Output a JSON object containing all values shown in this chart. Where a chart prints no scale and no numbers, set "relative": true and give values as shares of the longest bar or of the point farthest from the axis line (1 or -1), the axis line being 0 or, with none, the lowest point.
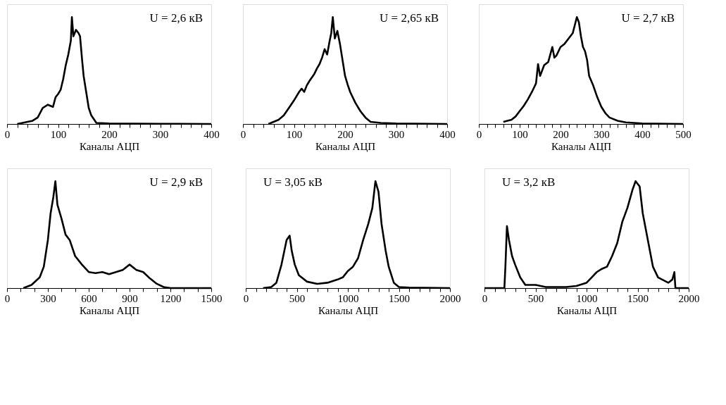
{
  "chart_data": [
    {
      "type": "line",
      "relative": true,
      "xlabel": "Каналы АЦП",
      "annotations": [
        "U = 2,6 кВ"
      ],
      "tick_labels": "x",
      "xlim": [
        0,
        400
      ],
      "xticks": [
        0,
        {
          "value": 20,
          "label": null
        },
        {
          "value": 40,
          "label": null
        },
        {
          "value": 60,
          "label": null
        },
        {
          "value": 80,
          "label": null
        },
        100,
        {
          "value": 120,
          "label": null
        },
        {
          "value": 140,
          "label": null
        },
        {
          "value": 160,
          "label": null
        },
        {
          "value": 180,
          "label": null
        },
        200,
        {
          "value": 220,
          "label": null
        },
        {
          "value": 240,
          "label": null
        },
        {
          "value": 260,
          "label": null
        },
        {
          "value": 280,
          "label": null
        },
        300,
        {
          "value": 320,
          "label": null
        },
        {
          "value": 340,
          "label": null
        },
        {
          "value": 360,
          "label": null
        },
        {
          "value": 380,
          "label": null
        },
        400
      ],
      "x": [
        20,
        40,
        50,
        60,
        70,
        80,
        90,
        95,
        100,
        105,
        110,
        115,
        120,
        125,
        127,
        130,
        135,
        140,
        143,
        147,
        150,
        155,
        160,
        165,
        175,
        200,
        250,
        300,
        400
      ],
      "series": [
        {
          "color": "#000000",
          "values": [
            0,
            0.02,
            0.03,
            0.06,
            0.15,
            0.18,
            0.16,
            0.25,
            0.28,
            0.32,
            0.42,
            0.55,
            0.65,
            0.78,
            1.0,
            0.82,
            0.88,
            0.85,
            0.82,
            0.6,
            0.45,
            0.3,
            0.15,
            0.08,
            0.01,
            0.005,
            0.003,
            0.002,
            0
          ]
        }
      ]
    },
    {
      "type": "line",
      "relative": true,
      "xlabel": "Каналы АЦП",
      "annotations": [
        "U = 2,65 кВ"
      ],
      "tick_labels": "x",
      "xlim": [
        0,
        400
      ],
      "xticks": [
        0,
        {
          "value": 20,
          "label": null
        },
        {
          "value": 40,
          "label": null
        },
        {
          "value": 60,
          "label": null
        },
        {
          "value": 80,
          "label": null
        },
        100,
        {
          "value": 120,
          "label": null
        },
        {
          "value": 140,
          "label": null
        },
        {
          "value": 160,
          "label": null
        },
        {
          "value": 180,
          "label": null
        },
        200,
        {
          "value": 220,
          "label": null
        },
        {
          "value": 240,
          "label": null
        },
        {
          "value": 260,
          "label": null
        },
        {
          "value": 280,
          "label": null
        },
        300,
        {
          "value": 320,
          "label": null
        },
        {
          "value": 340,
          "label": null
        },
        {
          "value": 360,
          "label": null
        },
        {
          "value": 380,
          "label": null
        },
        400
      ],
      "x": [
        50,
        60,
        70,
        80,
        90,
        100,
        110,
        115,
        120,
        125,
        130,
        140,
        145,
        150,
        155,
        160,
        165,
        170,
        173,
        176,
        180,
        185,
        190,
        195,
        200,
        205,
        210,
        220,
        230,
        240,
        250,
        270,
        300,
        400
      ],
      "series": [
        {
          "color": "#000000",
          "values": [
            0,
            0.02,
            0.04,
            0.08,
            0.15,
            0.22,
            0.3,
            0.33,
            0.3,
            0.36,
            0.4,
            0.47,
            0.52,
            0.56,
            0.62,
            0.7,
            0.65,
            0.78,
            0.85,
            1.0,
            0.8,
            0.87,
            0.75,
            0.6,
            0.45,
            0.37,
            0.3,
            0.2,
            0.12,
            0.06,
            0.02,
            0.01,
            0.005,
            0
          ]
        }
      ]
    },
    {
      "type": "line",
      "relative": true,
      "xlabel": "Каналы АЦП",
      "annotations": [
        "U = 2,7 кВ"
      ],
      "tick_labels": "x",
      "xlim": [
        0,
        500
      ],
      "xticks": [
        0,
        {
          "value": 20,
          "label": null
        },
        {
          "value": 40,
          "label": null
        },
        {
          "value": 60,
          "label": null
        },
        {
          "value": 80,
          "label": null
        },
        100,
        {
          "value": 120,
          "label": null
        },
        {
          "value": 140,
          "label": null
        },
        {
          "value": 160,
          "label": null
        },
        {
          "value": 180,
          "label": null
        },
        200,
        {
          "value": 220,
          "label": null
        },
        {
          "value": 240,
          "label": null
        },
        {
          "value": 260,
          "label": null
        },
        {
          "value": 280,
          "label": null
        },
        300,
        {
          "value": 320,
          "label": null
        },
        {
          "value": 340,
          "label": null
        },
        {
          "value": 360,
          "label": null
        },
        {
          "value": 380,
          "label": null
        },
        400,
        {
          "value": 420,
          "label": null
        },
        {
          "value": 440,
          "label": null
        },
        {
          "value": 460,
          "label": null
        },
        {
          "value": 480,
          "label": null
        },
        500
      ],
      "x": [
        60,
        80,
        90,
        100,
        110,
        120,
        130,
        140,
        145,
        150,
        160,
        170,
        180,
        185,
        190,
        200,
        210,
        220,
        230,
        240,
        245,
        250,
        255,
        260,
        265,
        270,
        280,
        290,
        300,
        310,
        320,
        340,
        360,
        400,
        500
      ],
      "series": [
        {
          "color": "#000000",
          "values": [
            0.02,
            0.04,
            0.07,
            0.12,
            0.17,
            0.23,
            0.3,
            0.38,
            0.56,
            0.45,
            0.55,
            0.58,
            0.72,
            0.62,
            0.64,
            0.72,
            0.75,
            0.8,
            0.85,
            1.0,
            0.95,
            0.82,
            0.72,
            0.68,
            0.6,
            0.45,
            0.36,
            0.25,
            0.16,
            0.1,
            0.06,
            0.03,
            0.015,
            0.005,
            0
          ]
        }
      ]
    },
    {
      "type": "line",
      "relative": true,
      "xlabel": "Каналы АЦП",
      "annotations": [
        "U = 2,9 кВ"
      ],
      "tick_labels": "x",
      "xlim": [
        0,
        1500
      ],
      "xticks": [
        0,
        {
          "value": 100,
          "label": null
        },
        {
          "value": 200,
          "label": null
        },
        300,
        {
          "value": 400,
          "label": null
        },
        {
          "value": 500,
          "label": null
        },
        600,
        {
          "value": 700,
          "label": null
        },
        {
          "value": 800,
          "label": null
        },
        900,
        {
          "value": 1000,
          "label": null
        },
        {
          "value": 1100,
          "label": null
        },
        1200,
        {
          "value": 1300,
          "label": null
        },
        {
          "value": 1400,
          "label": null
        },
        1500
      ],
      "x": [
        120,
        180,
        240,
        270,
        300,
        320,
        340,
        355,
        370,
        400,
        430,
        460,
        500,
        550,
        600,
        650,
        700,
        750,
        800,
        850,
        900,
        950,
        1000,
        1050,
        1100,
        1150,
        1200,
        1500
      ],
      "series": [
        {
          "color": "#000000",
          "values": [
            0,
            0.03,
            0.1,
            0.2,
            0.45,
            0.7,
            0.85,
            1.0,
            0.78,
            0.65,
            0.5,
            0.45,
            0.3,
            0.22,
            0.15,
            0.14,
            0.15,
            0.13,
            0.15,
            0.17,
            0.22,
            0.17,
            0.15,
            0.09,
            0.04,
            0.01,
            0,
            0
          ]
        }
      ]
    },
    {
      "type": "line",
      "relative": true,
      "xlabel": "Каналы АЦП",
      "annotations": [
        "U = 3,05 кВ"
      ],
      "tick_labels": "x",
      "xlim": [
        0,
        2000
      ],
      "xticks": [
        0,
        {
          "value": 100,
          "label": null
        },
        {
          "value": 200,
          "label": null
        },
        {
          "value": 300,
          "label": null
        },
        {
          "value": 400,
          "label": null
        },
        500,
        {
          "value": 600,
          "label": null
        },
        {
          "value": 700,
          "label": null
        },
        {
          "value": 800,
          "label": null
        },
        {
          "value": 900,
          "label": null
        },
        1000,
        {
          "value": 1100,
          "label": null
        },
        {
          "value": 1200,
          "label": null
        },
        {
          "value": 1300,
          "label": null
        },
        {
          "value": 1400,
          "label": null
        },
        1500,
        {
          "value": 1600,
          "label": null
        },
        {
          "value": 1700,
          "label": null
        },
        {
          "value": 1800,
          "label": null
        },
        {
          "value": 1900,
          "label": null
        },
        2000
      ],
      "x": [
        170,
        250,
        300,
        350,
        400,
        430,
        450,
        480,
        520,
        600,
        700,
        800,
        900,
        950,
        1000,
        1050,
        1100,
        1150,
        1200,
        1240,
        1270,
        1300,
        1330,
        1370,
        1400,
        1450,
        1500,
        1600,
        2000
      ],
      "series": [
        {
          "color": "#000000",
          "values": [
            0,
            0.01,
            0.05,
            0.22,
            0.45,
            0.49,
            0.35,
            0.22,
            0.12,
            0.06,
            0.04,
            0.05,
            0.08,
            0.1,
            0.16,
            0.2,
            0.28,
            0.45,
            0.6,
            0.75,
            1.0,
            0.9,
            0.6,
            0.35,
            0.2,
            0.05,
            0.01,
            0.005,
            0
          ]
        }
      ]
    },
    {
      "type": "line",
      "relative": true,
      "xlabel": "Каналы АЦП",
      "annotations": [
        "U = 3,2 кВ"
      ],
      "tick_labels": "x",
      "xlim": [
        0,
        2000
      ],
      "xticks": [
        0,
        {
          "value": 100,
          "label": null
        },
        {
          "value": 200,
          "label": null
        },
        {
          "value": 300,
          "label": null
        },
        {
          "value": 400,
          "label": null
        },
        500,
        {
          "value": 600,
          "label": null
        },
        {
          "value": 700,
          "label": null
        },
        {
          "value": 800,
          "label": null
        },
        {
          "value": 900,
          "label": null
        },
        1000,
        {
          "value": 1100,
          "label": null
        },
        {
          "value": 1200,
          "label": null
        },
        {
          "value": 1300,
          "label": null
        },
        {
          "value": 1400,
          "label": null
        },
        1500,
        {
          "value": 1600,
          "label": null
        },
        {
          "value": 1700,
          "label": null
        },
        {
          "value": 1800,
          "label": null
        },
        {
          "value": 1900,
          "label": null
        },
        2000
      ],
      "x": [
        0,
        195,
        205,
        220,
        240,
        270,
        300,
        350,
        400,
        500,
        600,
        800,
        900,
        1000,
        1050,
        1100,
        1150,
        1200,
        1250,
        1300,
        1350,
        1400,
        1450,
        1480,
        1520,
        1550,
        1600,
        1650,
        1700,
        1800,
        1840,
        1860,
        1870,
        2000
      ],
      "series": [
        {
          "color": "#000000",
          "values": [
            0,
            0,
            0.2,
            0.58,
            0.45,
            0.3,
            0.22,
            0.1,
            0.03,
            0.03,
            0.01,
            0.01,
            0.02,
            0.05,
            0.1,
            0.15,
            0.18,
            0.2,
            0.3,
            0.42,
            0.62,
            0.75,
            0.92,
            1.0,
            0.95,
            0.7,
            0.45,
            0.2,
            0.1,
            0.05,
            0.08,
            0.15,
            0,
            0
          ]
        }
      ]
    }
  ]
}
